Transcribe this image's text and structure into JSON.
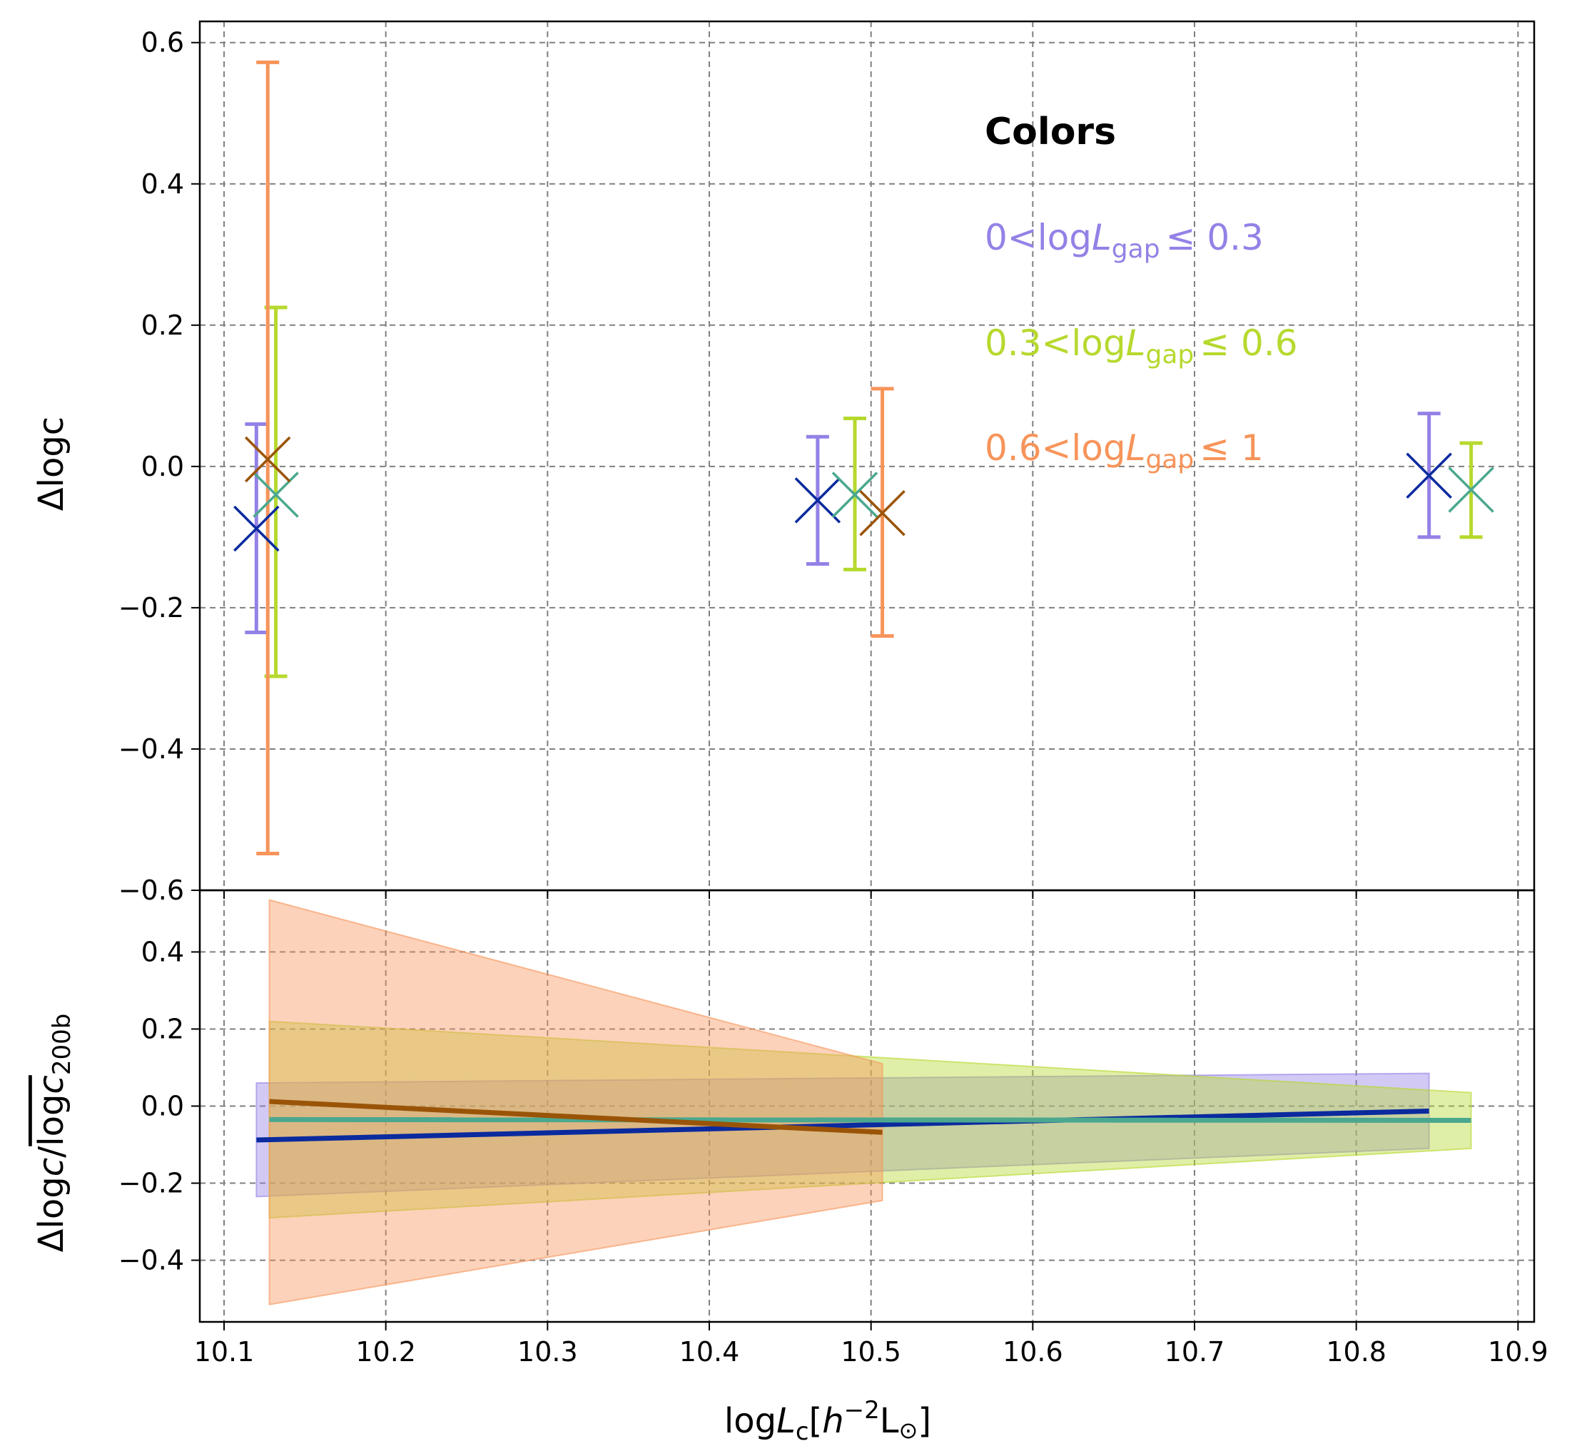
{
  "chart_data": [
    {
      "type": "errorbar",
      "panel": "top",
      "ylabel": "Δlogc",
      "xlim": [
        10.085,
        10.91
      ],
      "ylim": [
        -0.6,
        0.63
      ],
      "xticks": [
        "10.1",
        "10.2",
        "10.3",
        "10.4",
        "10.5",
        "10.6",
        "10.7",
        "10.8",
        "10.9"
      ],
      "yticks": [
        "−0.6",
        "−0.4",
        "−0.2",
        "0.0",
        "0.2",
        "0.4",
        "0.6"
      ],
      "ytick_values": [
        -0.6,
        -0.4,
        -0.2,
        0.0,
        0.2,
        0.4,
        0.6
      ],
      "grid": true,
      "series": [
        {
          "color": "#9481e6",
          "marker_color": "#0a2a9e",
          "points": [
            {
              "x": 10.12,
              "y": -0.088,
              "ylo": -0.235,
              "yhi": 0.06
            },
            {
              "x": 10.467,
              "y": -0.048,
              "ylo": -0.138,
              "yhi": 0.042
            },
            {
              "x": 10.845,
              "y": -0.013,
              "ylo": -0.1,
              "yhi": 0.075
            }
          ]
        },
        {
          "color": "#b6d92e",
          "marker_color": "#4ba88f",
          "points": [
            {
              "x": 10.132,
              "y": -0.04,
              "ylo": -0.297,
              "yhi": 0.225
            },
            {
              "x": 10.49,
              "y": -0.04,
              "ylo": -0.146,
              "yhi": 0.068
            },
            {
              "x": 10.871,
              "y": -0.033,
              "ylo": -0.1,
              "yhi": 0.033
            }
          ]
        },
        {
          "color": "#f7945a",
          "marker_color": "#9a5408",
          "points": [
            {
              "x": 10.127,
              "y": 0.01,
              "ylo": -0.548,
              "yhi": 0.572
            },
            {
              "x": 10.507,
              "y": -0.066,
              "ylo": -0.24,
              "yhi": 0.11
            }
          ]
        }
      ],
      "legend_title": "Colors",
      "legend_entries": [
        {
          "pre": "0<log",
          "L": "L",
          "sub": "gap",
          "post": "≤ 0.3",
          "color": "#9481e6"
        },
        {
          "pre": "0.3<log",
          "L": "L",
          "sub": "gap",
          "post": "≤ 0.6",
          "color": "#b6d92e"
        },
        {
          "pre": "0.6<log",
          "L": "L",
          "sub": "gap",
          "post": "≤ 1",
          "color": "#f7945a"
        }
      ]
    },
    {
      "type": "line-band",
      "panel": "bottom",
      "ylabel_main": "Δlog",
      "ylabel_c": "c",
      "ylabel_over": "log",
      "ylabel_c2": "c",
      "ylabel_sub": "200b",
      "xlabel_pre": "log",
      "xlabel_L": "L",
      "xlabel_sub": "c",
      "xlabel_bracket": "[",
      "xlabel_h": "h",
      "xlabel_exp": "−2",
      "xlabel_unit": "L",
      "xlabel_sun": "⊙",
      "xlabel_close": "]",
      "xlim": [
        10.085,
        10.91
      ],
      "ylim": [
        -0.56,
        0.56
      ],
      "yticks": [
        "−0.4",
        "−0.2",
        "0.0",
        "0.2",
        "0.4"
      ],
      "ytick_values": [
        -0.4,
        -0.2,
        0.0,
        0.2,
        0.4
      ],
      "grid": true,
      "series": [
        {
          "line_color": "#0a2a9e",
          "fill_color": "#9481e6",
          "x": [
            10.12,
            10.845
          ],
          "y": [
            -0.088,
            -0.013
          ],
          "lo": [
            -0.235,
            -0.11
          ],
          "hi": [
            0.06,
            0.085
          ]
        },
        {
          "line_color": "#4ba88f",
          "fill_color": "#b6d92e",
          "x": [
            10.128,
            10.871
          ],
          "y": [
            -0.035,
            -0.037
          ],
          "lo": [
            -0.29,
            -0.11
          ],
          "hi": [
            0.22,
            0.035
          ]
        },
        {
          "line_color": "#9a5408",
          "fill_color": "#f7945a",
          "x": [
            10.128,
            10.507
          ],
          "y": [
            0.012,
            -0.068
          ],
          "lo": [
            -0.515,
            -0.245
          ],
          "hi": [
            0.535,
            0.11
          ]
        }
      ]
    }
  ]
}
